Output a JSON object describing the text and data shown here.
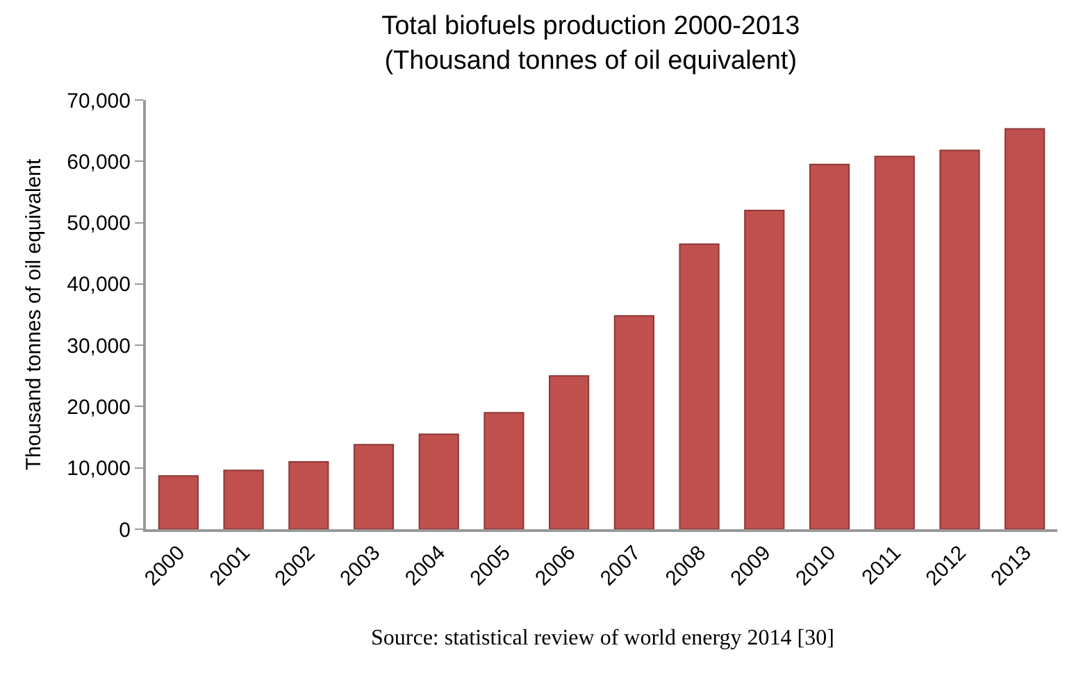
{
  "chart_data": {
    "type": "bar",
    "title": "Total biofuels production 2000-2013\n(Thousand tonnes of oil equivalent)",
    "ylabel": "Thousand tonnes of oil equivalent",
    "categories": [
      "2000",
      "2001",
      "2002",
      "2003",
      "2004",
      "2005",
      "2006",
      "2007",
      "2008",
      "2009",
      "2010",
      "2011",
      "2012",
      "2013"
    ],
    "values": [
      8700,
      9600,
      11000,
      13800,
      15500,
      19000,
      25000,
      34800,
      46500,
      52000,
      59500,
      60800,
      61800,
      65300
    ],
    "color": "#c0504d",
    "ylim": [
      0,
      70000
    ],
    "yticks": [
      {
        "value": 0,
        "label": "0"
      },
      {
        "value": 10000,
        "label": "10,000"
      },
      {
        "value": 20000,
        "label": "20,000"
      },
      {
        "value": 30000,
        "label": "30,000"
      },
      {
        "value": 40000,
        "label": "40,000"
      },
      {
        "value": 50000,
        "label": "50,000"
      },
      {
        "value": 60000,
        "label": "60,000"
      },
      {
        "value": 70000,
        "label": "70,000"
      }
    ],
    "annotations": [
      "Source: statistical review of world energy 2014 [30]"
    ]
  }
}
